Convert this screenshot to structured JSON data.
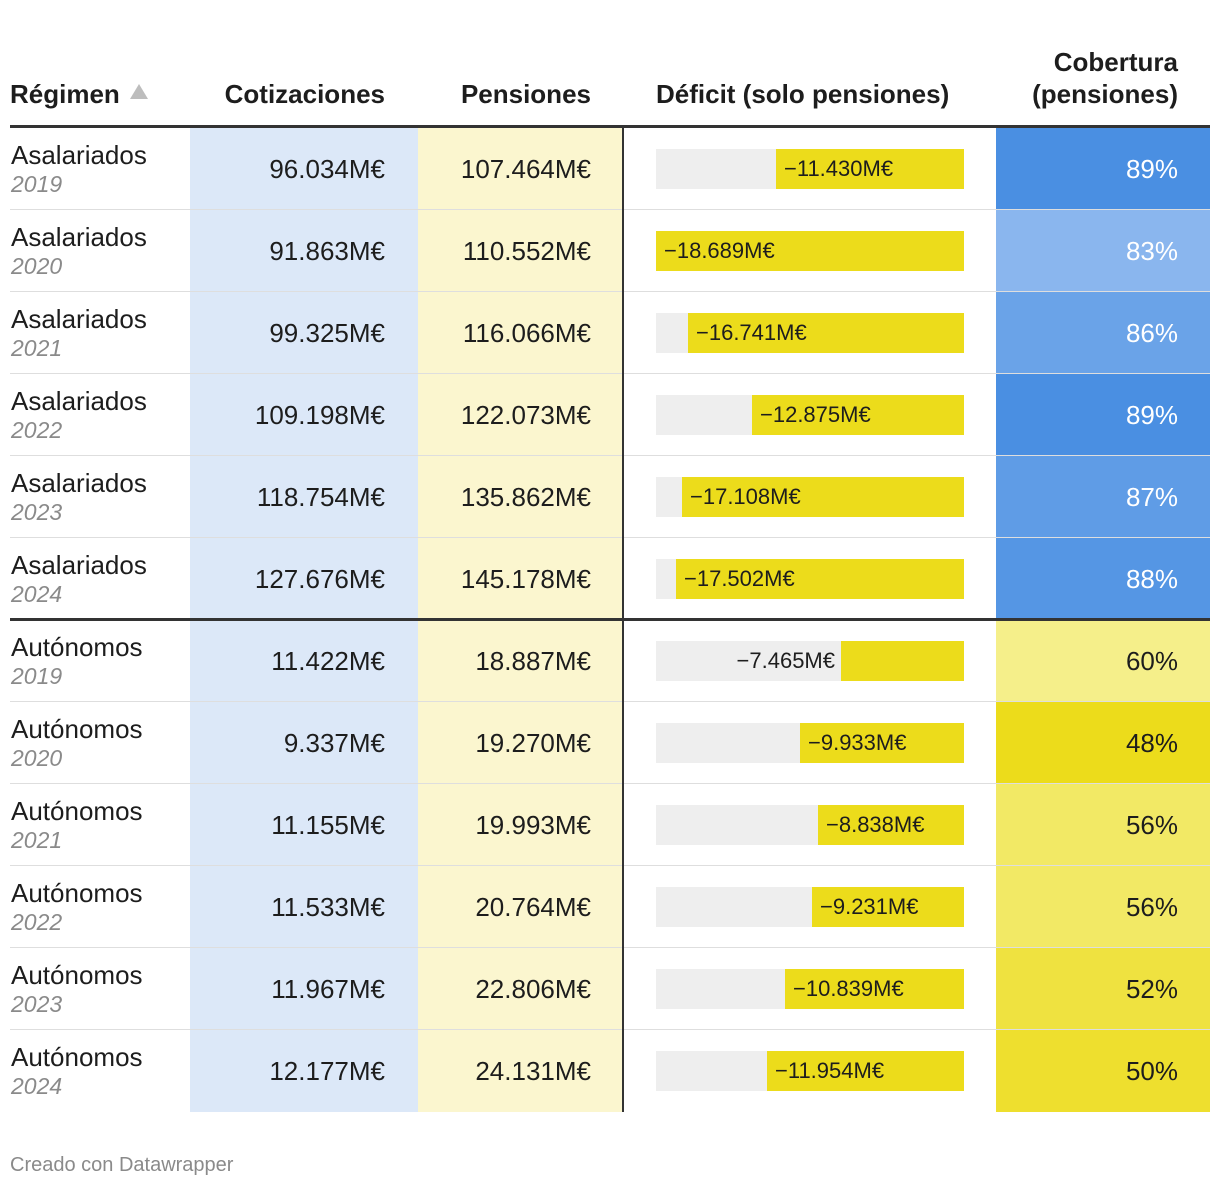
{
  "chart_data": {
    "type": "table",
    "columns": {
      "regimen": "Régimen",
      "cotizaciones": "Cotizaciones",
      "pensiones": "Pensiones",
      "deficit": "Déficit (solo pensiones)",
      "cobertura": "Cobertura (pensiones)"
    },
    "sort": {
      "column": "regimen",
      "direction": "ascending",
      "icon": "sort-ascending-icon"
    },
    "deficit_scale_max": 18689,
    "colors": {
      "cotizaciones_bg": "#dce8f8",
      "pensiones_bg": "#fbf6cf",
      "bar": "#ecdc1b",
      "bar_track": "#eeeeee",
      "cobertura_high": "#4a8fe2",
      "cobertura_mid": "#f5ef8a",
      "cobertura_low": "#ecdc1b"
    },
    "rows": [
      {
        "regimen": "Asalariados",
        "year": "2019",
        "cotizaciones": "96.034M€",
        "pensiones": "107.464M€",
        "deficit": -11430,
        "deficit_label": "−11.430M€",
        "cobertura": 89,
        "cobertura_label": "89%"
      },
      {
        "regimen": "Asalariados",
        "year": "2020",
        "cotizaciones": "91.863M€",
        "pensiones": "110.552M€",
        "deficit": -18689,
        "deficit_label": "−18.689M€",
        "cobertura": 83,
        "cobertura_label": "83%"
      },
      {
        "regimen": "Asalariados",
        "year": "2021",
        "cotizaciones": "99.325M€",
        "pensiones": "116.066M€",
        "deficit": -16741,
        "deficit_label": "−16.741M€",
        "cobertura": 86,
        "cobertura_label": "86%"
      },
      {
        "regimen": "Asalariados",
        "year": "2022",
        "cotizaciones": "109.198M€",
        "pensiones": "122.073M€",
        "deficit": -12875,
        "deficit_label": "−12.875M€",
        "cobertura": 89,
        "cobertura_label": "89%"
      },
      {
        "regimen": "Asalariados",
        "year": "2023",
        "cotizaciones": "118.754M€",
        "pensiones": "135.862M€",
        "deficit": -17108,
        "deficit_label": "−17.108M€",
        "cobertura": 87,
        "cobertura_label": "87%"
      },
      {
        "regimen": "Asalariados",
        "year": "2024",
        "cotizaciones": "127.676M€",
        "pensiones": "145.178M€",
        "deficit": -17502,
        "deficit_label": "−17.502M€",
        "cobertura": 88,
        "cobertura_label": "88%"
      },
      {
        "regimen": "Autónomos",
        "year": "2019",
        "cotizaciones": "11.422M€",
        "pensiones": "18.887M€",
        "deficit": -7465,
        "deficit_label": "−7.465M€",
        "cobertura": 60,
        "cobertura_label": "60%"
      },
      {
        "regimen": "Autónomos",
        "year": "2020",
        "cotizaciones": "9.337M€",
        "pensiones": "19.270M€",
        "deficit": -9933,
        "deficit_label": "−9.933M€",
        "cobertura": 48,
        "cobertura_label": "48%"
      },
      {
        "regimen": "Autónomos",
        "year": "2021",
        "cotizaciones": "11.155M€",
        "pensiones": "19.993M€",
        "deficit": -8838,
        "deficit_label": "−8.838M€",
        "cobertura": 56,
        "cobertura_label": "56%"
      },
      {
        "regimen": "Autónomos",
        "year": "2022",
        "cotizaciones": "11.533M€",
        "pensiones": "20.764M€",
        "deficit": -9231,
        "deficit_label": "−9.231M€",
        "cobertura": 56,
        "cobertura_label": "56%"
      },
      {
        "regimen": "Autónomos",
        "year": "2023",
        "cotizaciones": "11.967M€",
        "pensiones": "22.806M€",
        "deficit": -10839,
        "deficit_label": "−10.839M€",
        "cobertura": 52,
        "cobertura_label": "52%"
      },
      {
        "regimen": "Autónomos",
        "year": "2024",
        "cotizaciones": "12.177M€",
        "pensiones": "24.131M€",
        "deficit": -11954,
        "deficit_label": "−11.954M€",
        "cobertura": 50,
        "cobertura_label": "50%"
      }
    ]
  },
  "footer": {
    "credit": "Creado con Datawrapper"
  }
}
